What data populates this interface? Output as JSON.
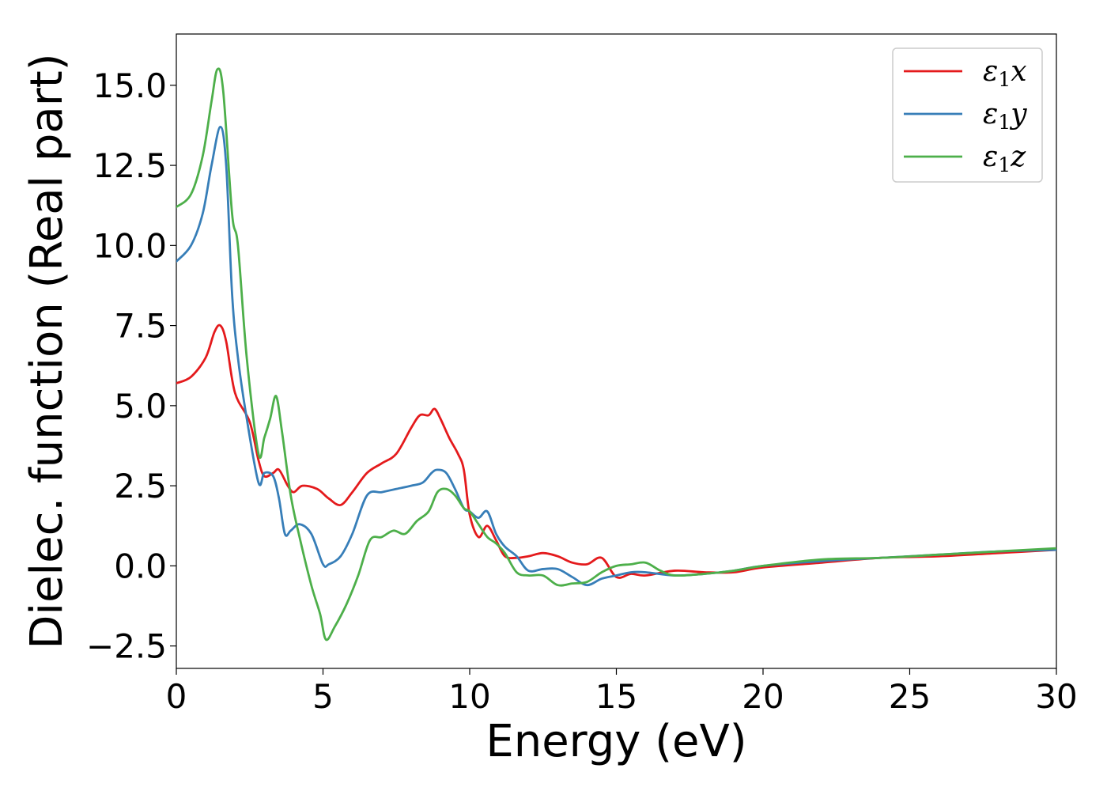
{
  "chart_data": {
    "type": "line",
    "title": "",
    "xlabel": "Energy (eV)",
    "ylabel": "Dielec. function (Real part)",
    "xlim": [
      0,
      30
    ],
    "ylim": [
      -3.2,
      16.6
    ],
    "xticks": [
      0,
      5,
      10,
      15,
      20,
      25,
      30
    ],
    "xtick_labels": [
      "0",
      "5",
      "10",
      "15",
      "20",
      "25",
      "30"
    ],
    "yticks": [
      -2.5,
      0.0,
      2.5,
      5.0,
      7.5,
      10.0,
      12.5,
      15.0
    ],
    "ytick_labels": [
      "−2.5",
      "0.0",
      "2.5",
      "5.0",
      "7.5",
      "10.0",
      "12.5",
      "15.0"
    ],
    "grid": false,
    "legend_position": "top-right",
    "series": [
      {
        "name": "ε₁x",
        "legend_base": "ε",
        "legend_sub": "1",
        "legend_var": "x",
        "color": "#e41a1c",
        "x": [
          0,
          0.5,
          1.0,
          1.3,
          1.5,
          1.7,
          2.0,
          2.5,
          2.8,
          3.0,
          3.3,
          3.5,
          3.8,
          4.0,
          4.3,
          4.8,
          5.2,
          5.6,
          6.0,
          6.5,
          7.0,
          7.5,
          8.0,
          8.3,
          8.6,
          8.8,
          9.0,
          9.3,
          9.6,
          9.8,
          10.0,
          10.3,
          10.6,
          10.9,
          11.2,
          11.6,
          12.0,
          12.5,
          13.0,
          13.5,
          14.0,
          14.5,
          15.0,
          15.5,
          16.0,
          17.0,
          18.0,
          19.0,
          20.0,
          22.0,
          24.0,
          26.0,
          28.0,
          30.0
        ],
        "y": [
          5.7,
          5.9,
          6.5,
          7.3,
          7.5,
          7.0,
          5.4,
          4.5,
          3.3,
          2.8,
          2.9,
          3.0,
          2.5,
          2.3,
          2.5,
          2.4,
          2.1,
          1.9,
          2.3,
          2.9,
          3.2,
          3.5,
          4.3,
          4.7,
          4.7,
          4.9,
          4.6,
          4.0,
          3.5,
          3.0,
          1.6,
          0.9,
          1.25,
          0.8,
          0.3,
          0.25,
          0.3,
          0.4,
          0.3,
          0.1,
          0.05,
          0.25,
          -0.35,
          -0.25,
          -0.3,
          -0.15,
          -0.2,
          -0.2,
          -0.05,
          0.1,
          0.25,
          0.3,
          0.4,
          0.5
        ]
      },
      {
        "name": "ε₁y",
        "legend_base": "ε",
        "legend_sub": "1",
        "legend_var": "y",
        "color": "#377eb8",
        "x": [
          0,
          0.5,
          0.9,
          1.2,
          1.5,
          1.7,
          1.9,
          2.1,
          2.4,
          2.8,
          3.0,
          3.3,
          3.5,
          3.7,
          3.9,
          4.2,
          4.6,
          5.0,
          5.2,
          5.6,
          6.0,
          6.5,
          7.0,
          7.5,
          8.0,
          8.4,
          8.7,
          8.9,
          9.2,
          9.5,
          9.8,
          10.0,
          10.3,
          10.6,
          10.9,
          11.2,
          11.6,
          12.0,
          12.5,
          13.0,
          13.5,
          14.0,
          14.5,
          15.0,
          15.5,
          16.0,
          17.0,
          18.0,
          19.0,
          20.0,
          22.0,
          24.0,
          26.0,
          28.0,
          30.0
        ],
        "y": [
          9.5,
          10.0,
          11.0,
          12.5,
          13.7,
          12.5,
          8.5,
          6.5,
          4.6,
          2.6,
          2.9,
          2.8,
          2.1,
          1.0,
          1.1,
          1.3,
          1.0,
          0.05,
          0.05,
          0.3,
          1.0,
          2.2,
          2.3,
          2.4,
          2.5,
          2.6,
          2.9,
          3.0,
          2.9,
          2.4,
          1.8,
          1.7,
          1.5,
          1.7,
          1.0,
          0.6,
          0.3,
          -0.15,
          -0.1,
          -0.1,
          -0.35,
          -0.6,
          -0.4,
          -0.3,
          -0.2,
          -0.2,
          -0.3,
          -0.25,
          -0.15,
          0.0,
          0.15,
          0.25,
          0.35,
          0.45,
          0.5
        ]
      },
      {
        "name": "ε₁z",
        "legend_base": "ε",
        "legend_sub": "1",
        "legend_var": "z",
        "color": "#4daf4a",
        "x": [
          0,
          0.5,
          0.9,
          1.2,
          1.4,
          1.6,
          1.9,
          2.1,
          2.4,
          2.8,
          3.0,
          3.2,
          3.4,
          3.6,
          3.9,
          4.2,
          4.6,
          4.9,
          5.1,
          5.4,
          5.8,
          6.2,
          6.6,
          7.0,
          7.4,
          7.8,
          8.2,
          8.6,
          8.9,
          9.2,
          9.5,
          9.8,
          10.0,
          10.3,
          10.6,
          10.9,
          11.2,
          11.6,
          12.0,
          12.5,
          13.0,
          13.5,
          14.0,
          14.5,
          15.0,
          15.5,
          16.0,
          16.5,
          17.0,
          18.0,
          19.0,
          20.0,
          22.0,
          24.0,
          26.0,
          28.0,
          30.0
        ],
        "y": [
          11.2,
          11.6,
          12.8,
          14.5,
          15.5,
          14.8,
          11.0,
          10.0,
          6.5,
          3.5,
          4.0,
          4.6,
          5.3,
          4.2,
          2.2,
          0.9,
          -0.6,
          -1.5,
          -2.3,
          -1.9,
          -1.2,
          -0.3,
          0.8,
          0.9,
          1.1,
          1.0,
          1.4,
          1.7,
          2.3,
          2.4,
          2.2,
          1.8,
          1.7,
          1.3,
          0.9,
          0.7,
          0.4,
          -0.2,
          -0.3,
          -0.3,
          -0.6,
          -0.55,
          -0.5,
          -0.2,
          0.0,
          0.05,
          0.1,
          -0.15,
          -0.3,
          -0.25,
          -0.15,
          0.0,
          0.2,
          0.25,
          0.35,
          0.45,
          0.55
        ]
      }
    ]
  }
}
